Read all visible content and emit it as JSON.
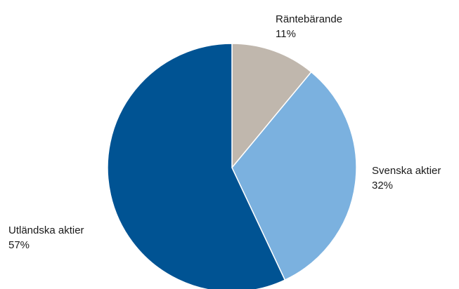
{
  "chart_data": {
    "type": "pie",
    "title": "",
    "slices": [
      {
        "label": "Räntebärande",
        "value": 11,
        "value_label": "11%",
        "color": "#c0b7ad"
      },
      {
        "label": "Svenska aktier",
        "value": 32,
        "value_label": "32%",
        "color": "#7bb1df"
      },
      {
        "label": "Utländska aktier",
        "value": 57,
        "value_label": "57%",
        "color": "#005393"
      }
    ],
    "start_angle": "12 o'clock",
    "direction": "clockwise",
    "legend": "none (direct labels)"
  }
}
